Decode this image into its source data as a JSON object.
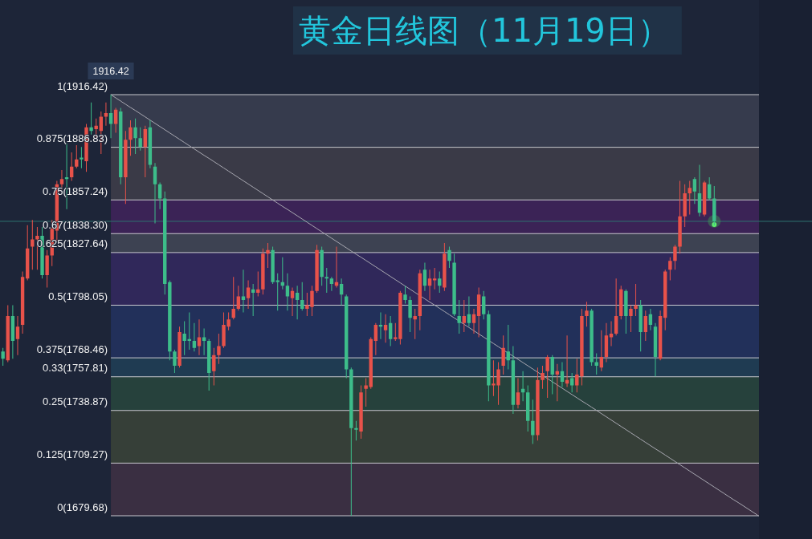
{
  "chart_data": {
    "type": "candlestick",
    "title": "黄金日线图（11月19日）",
    "categories": [
      null,
      null,
      null,
      null,
      null,
      null,
      null,
      null,
      null,
      null,
      null,
      null,
      null,
      null,
      null,
      null,
      null,
      null,
      null,
      null,
      null,
      null,
      null,
      null,
      null,
      null,
      null,
      null,
      null,
      null,
      null,
      null,
      null,
      null,
      null,
      null,
      null,
      null,
      null,
      null,
      null,
      null,
      null,
      null,
      null,
      null,
      null,
      null,
      null,
      null,
      null,
      null,
      null,
      null,
      null,
      null,
      null,
      null,
      null,
      null,
      null,
      null,
      null,
      null,
      null,
      null,
      null,
      null,
      null,
      null,
      null,
      null,
      null,
      null,
      null,
      null,
      null,
      null,
      null,
      null,
      null,
      null,
      null,
      null,
      null,
      null,
      null,
      null,
      null,
      null,
      null,
      null,
      null,
      null,
      null,
      null,
      null,
      null,
      null,
      null,
      null,
      null,
      null,
      null,
      null,
      null,
      null,
      null,
      null,
      null,
      null,
      null,
      null,
      null,
      null,
      null,
      null,
      null,
      null,
      null,
      null,
      null,
      null,
      null,
      null,
      null,
      null,
      null,
      null,
      null,
      null,
      null,
      null,
      null,
      null,
      null,
      null,
      null,
      null,
      null,
      null,
      null,
      null,
      null,
      null,
      null,
      null,
      null,
      null,
      null,
      null,
      null,
      null,
      null,
      null
    ],
    "ohlc": [
      [
        1772,
        1774,
        1764,
        1768
      ],
      [
        1767,
        1798,
        1766,
        1792
      ],
      [
        1792,
        1798,
        1768,
        1778
      ],
      [
        1779,
        1792,
        1770,
        1786
      ],
      [
        1787,
        1817,
        1782,
        1814
      ],
      [
        1813,
        1843,
        1812,
        1830
      ],
      [
        1831,
        1846,
        1818,
        1835
      ],
      [
        1835,
        1842,
        1818,
        1837
      ],
      [
        1837,
        1842,
        1813,
        1815
      ],
      [
        1815,
        1829,
        1808,
        1826
      ],
      [
        1826,
        1846,
        1820,
        1841
      ],
      [
        1840,
        1868,
        1834,
        1866
      ],
      [
        1866,
        1874,
        1863,
        1869
      ],
      [
        1870,
        1889,
        1852,
        1869
      ],
      [
        1870,
        1884,
        1868,
        1876
      ],
      [
        1876,
        1888,
        1875,
        1880
      ],
      [
        1881,
        1887,
        1875,
        1880
      ],
      [
        1879,
        1900,
        1873,
        1898
      ],
      [
        1898,
        1912,
        1894,
        1896
      ],
      [
        1897,
        1903,
        1892,
        1899
      ],
      [
        1896,
        1907,
        1883,
        1904
      ],
      [
        1904,
        1912,
        1899,
        1906
      ],
      [
        1906,
        1916.42,
        1892,
        1900
      ],
      [
        1900,
        1909,
        1895,
        1908
      ],
      [
        1907,
        1909,
        1866,
        1870
      ],
      [
        1870,
        1896,
        1855,
        1891
      ],
      [
        1891,
        1902,
        1882,
        1898
      ],
      [
        1898,
        1903,
        1883,
        1892
      ],
      [
        1892,
        1898,
        1885,
        1887
      ],
      [
        1887,
        1899,
        1870,
        1897
      ],
      [
        1898,
        1902,
        1875,
        1877
      ],
      [
        1876,
        1878,
        1844,
        1866
      ],
      [
        1866,
        1867,
        1852,
        1858
      ],
      [
        1858,
        1862,
        1804,
        1810
      ],
      [
        1811,
        1812,
        1767,
        1772
      ],
      [
        1772,
        1773,
        1760,
        1764
      ],
      [
        1764,
        1786,
        1763,
        1783
      ],
      [
        1782,
        1789,
        1770,
        1778
      ],
      [
        1779,
        1794,
        1773,
        1778
      ],
      [
        1778,
        1788,
        1772,
        1774
      ],
      [
        1775,
        1790,
        1770,
        1780
      ],
      [
        1780,
        1785,
        1770,
        1778
      ],
      [
        1778,
        1779,
        1750,
        1760
      ],
      [
        1761,
        1774,
        1753,
        1770
      ],
      [
        1770,
        1782,
        1765,
        1775
      ],
      [
        1775,
        1794,
        1774,
        1787
      ],
      [
        1786,
        1794,
        1784,
        1790
      ],
      [
        1791,
        1814,
        1790,
        1796
      ],
      [
        1796,
        1809,
        1795,
        1803
      ],
      [
        1803,
        1818,
        1794,
        1801
      ],
      [
        1802,
        1812,
        1796,
        1808
      ],
      [
        1807,
        1810,
        1792,
        1805
      ],
      [
        1805,
        1817,
        1803,
        1807
      ],
      [
        1807,
        1830,
        1804,
        1827
      ],
      [
        1827,
        1833,
        1819,
        1829
      ],
      [
        1829,
        1831,
        1810,
        1811
      ],
      [
        1812,
        1816,
        1795,
        1811
      ],
      [
        1811,
        1825,
        1807,
        1809
      ],
      [
        1809,
        1816,
        1795,
        1803
      ],
      [
        1802,
        1808,
        1792,
        1806
      ],
      [
        1805,
        1809,
        1790,
        1801
      ],
      [
        1801,
        1811,
        1795,
        1796
      ],
      [
        1796,
        1805,
        1792,
        1798
      ],
      [
        1797,
        1809,
        1792,
        1806
      ],
      [
        1806,
        1832,
        1805,
        1829
      ],
      [
        1829,
        1831,
        1809,
        1814
      ],
      [
        1814,
        1819,
        1805,
        1813
      ],
      [
        1813,
        1814,
        1806,
        1810
      ],
      [
        1809,
        1831,
        1808,
        1811
      ],
      [
        1810,
        1813,
        1798,
        1804
      ],
      [
        1803,
        1804,
        1757,
        1762
      ],
      [
        1762,
        1763,
        1679.68,
        1729
      ],
      [
        1729,
        1733,
        1722,
        1728
      ],
      [
        1727,
        1753,
        1723,
        1749
      ],
      [
        1751,
        1757,
        1741,
        1753
      ],
      [
        1752,
        1780,
        1751,
        1779
      ],
      [
        1778,
        1788,
        1770,
        1787
      ],
      [
        1787,
        1794,
        1779,
        1786
      ],
      [
        1784,
        1793,
        1777,
        1787
      ],
      [
        1788,
        1792,
        1775,
        1779
      ],
      [
        1779,
        1788,
        1778,
        1780
      ],
      [
        1779,
        1806,
        1776,
        1805
      ],
      [
        1804,
        1809,
        1799,
        1801
      ],
      [
        1801,
        1803,
        1783,
        1791
      ],
      [
        1790,
        1796,
        1779,
        1792
      ],
      [
        1792,
        1818,
        1784,
        1816
      ],
      [
        1818,
        1822,
        1806,
        1809
      ],
      [
        1809,
        1818,
        1801,
        1813
      ],
      [
        1812,
        1819,
        1807,
        1813
      ],
      [
        1813,
        1817,
        1805,
        1809
      ],
      [
        1808,
        1833,
        1806,
        1827
      ],
      [
        1829,
        1831,
        1819,
        1823
      ],
      [
        1822,
        1827,
        1792,
        1793
      ],
      [
        1792,
        1801,
        1782,
        1788
      ],
      [
        1788,
        1801,
        1783,
        1792
      ],
      [
        1793,
        1803,
        1786,
        1788
      ],
      [
        1788,
        1796,
        1782,
        1793
      ],
      [
        1792,
        1808,
        1780,
        1804
      ],
      [
        1803,
        1806,
        1790,
        1793
      ],
      [
        1793,
        1795,
        1744,
        1753
      ],
      [
        1753,
        1767,
        1747,
        1754
      ],
      [
        1753,
        1766,
        1742,
        1762
      ],
      [
        1764,
        1781,
        1759,
        1774
      ],
      [
        1772,
        1787,
        1762,
        1767
      ],
      [
        1767,
        1775,
        1737,
        1742
      ],
      [
        1742,
        1757,
        1740,
        1749
      ],
      [
        1751,
        1761,
        1744,
        1749
      ],
      [
        1749,
        1753,
        1727,
        1733
      ],
      [
        1733,
        1745,
        1720,
        1725
      ],
      [
        1725,
        1763,
        1722,
        1756
      ],
      [
        1756,
        1764,
        1751,
        1760
      ],
      [
        1761,
        1770,
        1746,
        1769
      ],
      [
        1769,
        1770,
        1748,
        1759
      ],
      [
        1759,
        1765,
        1744,
        1761
      ],
      [
        1761,
        1766,
        1752,
        1755
      ],
      [
        1754,
        1781,
        1752,
        1756
      ],
      [
        1757,
        1760,
        1749,
        1753
      ],
      [
        1753,
        1768,
        1749,
        1759
      ],
      [
        1758,
        1796,
        1753,
        1792
      ],
      [
        1792,
        1800,
        1786,
        1795
      ],
      [
        1795,
        1796,
        1764,
        1766
      ],
      [
        1766,
        1771,
        1759,
        1764
      ],
      [
        1763,
        1784,
        1761,
        1769
      ],
      [
        1769,
        1788,
        1766,
        1781
      ],
      [
        1780,
        1789,
        1775,
        1782
      ],
      [
        1782,
        1813,
        1781,
        1792
      ],
      [
        1792,
        1809,
        1790,
        1807
      ],
      [
        1806,
        1807,
        1782,
        1792
      ],
      [
        1792,
        1798,
        1783,
        1796
      ],
      [
        1796,
        1810,
        1792,
        1798
      ],
      [
        1798,
        1801,
        1772,
        1783
      ],
      [
        1783,
        1795,
        1778,
        1792
      ],
      [
        1793,
        1796,
        1784,
        1787
      ],
      [
        1786,
        1788,
        1758,
        1769
      ],
      [
        1768,
        1795,
        1767,
        1792
      ],
      [
        1791,
        1818,
        1784,
        1817
      ],
      [
        1818,
        1825,
        1812,
        1823
      ],
      [
        1823,
        1832,
        1818,
        1831
      ],
      [
        1831,
        1868,
        1827,
        1848
      ],
      [
        1848,
        1866,
        1842,
        1861
      ],
      [
        1861,
        1868,
        1849,
        1864
      ],
      [
        1869,
        1870,
        1855,
        1862
      ],
      [
        1861,
        1877,
        1848,
        1850
      ],
      [
        1849,
        1868,
        1848,
        1867
      ],
      [
        1866,
        1870,
        1857,
        1858
      ],
      [
        1858,
        1865,
        1843,
        1845.2
      ],
      null,
      null,
      null,
      null,
      null,
      null,
      null,
      null,
      null
    ],
    "series": [
      {
        "type": "line",
        "color": "#a9a9b2",
        "values": [
          null,
          null,
          null,
          null,
          null,
          null,
          null,
          null,
          null,
          null,
          null,
          null,
          null,
          null,
          null,
          null,
          null,
          null,
          null,
          null,
          null,
          null,
          1916.42,
          1914.6,
          1912.8,
          1911.0,
          1909.2,
          1907.5,
          1905.7,
          1903.9,
          1902.1,
          1900.3,
          1898.5,
          1896.7,
          1894.9,
          1893.1,
          1891.3,
          1889.5,
          1887.7,
          1885.9,
          1884.1,
          1882.3,
          1880.6,
          1878.8,
          1877.0,
          1875.2,
          1873.4,
          1871.6,
          1869.8,
          1868.0,
          1866.2,
          1864.4,
          1862.6,
          1860.8,
          1859.0,
          1857.2,
          1855.4,
          1853.6,
          1851.9,
          1850.1,
          1848.3,
          1846.5,
          1844.7,
          1842.9,
          1841.1,
          1839.3,
          1837.5,
          1835.7,
          1833.9,
          1832.1,
          1830.3,
          1828.5,
          1826.7,
          1825.0,
          1823.2,
          1821.4,
          1819.6,
          1817.8,
          1816.0,
          1814.2,
          1812.4,
          1810.6,
          1808.8,
          1807.0,
          1805.2,
          1803.4,
          1801.6,
          1799.8,
          1798.1,
          1796.3,
          1794.5,
          1792.7,
          1790.9,
          1789.1,
          1787.3,
          1785.5,
          1783.7,
          1781.9,
          1780.1,
          1778.3,
          1776.5,
          1774.7,
          1772.9,
          1771.1,
          1769.4,
          1767.6,
          1765.8,
          1764.0,
          1762.2,
          1760.4,
          1758.6,
          1756.8,
          1755.0,
          1753.2,
          1751.4,
          1749.6,
          1747.8,
          1746.0,
          1744.2,
          1742.5,
          1740.7,
          1738.9,
          1737.1,
          1735.3,
          1733.5,
          1731.7,
          1729.9,
          1728.1,
          1726.3,
          1724.5,
          1722.7,
          1720.9,
          1719.1,
          1717.3,
          1715.6,
          1713.8,
          1712.0,
          1710.2,
          1708.4,
          1706.6,
          1704.8,
          1703.0,
          1701.2,
          1699.4,
          1697.6,
          1695.8,
          1694.0,
          1692.2,
          1690.4,
          1688.6,
          1686.9,
          1685.1,
          1683.3,
          1681.5,
          1679.68
        ]
      }
    ],
    "ylim": [
      1679.68,
      1916.42
    ],
    "ref_lines": [
      {
        "axis": "y",
        "value": 1916.42,
        "label": "1(1916.42)",
        "color": "#c9c9cf"
      },
      {
        "axis": "y",
        "value": 1886.83,
        "label": "0.875(1886.83)",
        "color": "#c9c9cf"
      },
      {
        "axis": "y",
        "value": 1857.24,
        "label": "0.75(1857.24)",
        "color": "#c9c9cf"
      },
      {
        "axis": "y",
        "value": 1838.3,
        "label": "0.67(1838.30)",
        "color": "#c9c9cf"
      },
      {
        "axis": "y",
        "value": 1827.64,
        "label": "0.625(1827.64)",
        "color": "#c9c9cf"
      },
      {
        "axis": "y",
        "value": 1798.05,
        "label": "0.5(1798.05)",
        "color": "#c9c9cf"
      },
      {
        "axis": "y",
        "value": 1768.46,
        "label": "0.375(1768.46)",
        "color": "#c9c9cf"
      },
      {
        "axis": "y",
        "value": 1757.81,
        "label": "0.33(1757.81)",
        "color": "#c9c9cf"
      },
      {
        "axis": "y",
        "value": 1738.87,
        "label": "0.25(1738.87)",
        "color": "#c9c9cf"
      },
      {
        "axis": "y",
        "value": 1709.27,
        "label": "0.125(1709.27)",
        "color": "#c9c9cf"
      },
      {
        "axis": "y",
        "value": 1679.68,
        "label": "0(1679.68)",
        "color": "#c9c9cf"
      },
      {
        "axis": "y",
        "value": 1845.2,
        "color": "#2e7570"
      }
    ],
    "bands": [
      {
        "axis": "y",
        "from": 1886.83,
        "to": 1916.42,
        "color": "#363b4d"
      },
      {
        "axis": "y",
        "from": 1857.24,
        "to": 1886.83,
        "color": "#3a3a47"
      },
      {
        "axis": "y",
        "from": 1838.3,
        "to": 1857.24,
        "color": "#3b2356"
      },
      {
        "axis": "y",
        "from": 1827.64,
        "to": 1838.3,
        "color": "#3d4252"
      },
      {
        "axis": "y",
        "from": 1798.05,
        "to": 1827.64,
        "color": "#30285a"
      },
      {
        "axis": "y",
        "from": 1768.46,
        "to": 1798.05,
        "color": "#22305a"
      },
      {
        "axis": "y",
        "from": 1757.81,
        "to": 1768.46,
        "color": "#1f3b52"
      },
      {
        "axis": "y",
        "from": 1738.87,
        "to": 1757.81,
        "color": "#26413c"
      },
      {
        "axis": "y",
        "from": 1709.27,
        "to": 1738.87,
        "color": "#363f38"
      },
      {
        "axis": "y",
        "from": 1679.68,
        "to": 1709.27,
        "color": "#3a2f42"
      }
    ],
    "annotations": [
      {
        "text": "1916.42",
        "y": 1916.42
      }
    ]
  }
}
